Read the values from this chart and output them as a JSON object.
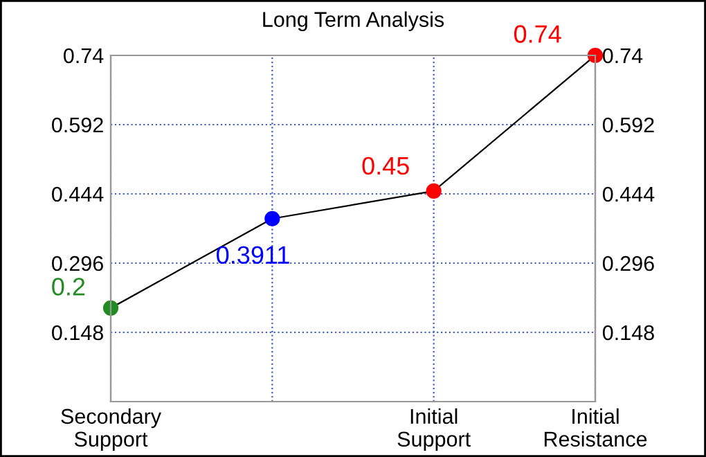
{
  "chart_data": {
    "type": "line",
    "title": "Long Term Analysis",
    "categories": [
      "Secondary\nSupport",
      null,
      "Initial\nSupport",
      "Initial\nResistance"
    ],
    "series": [
      {
        "color": "#000000",
        "colors": [
          "#228b22",
          "#0000ff",
          "#ff0000",
          "#ff0000"
        ],
        "values": [
          0.2,
          0.3911,
          0.45,
          0.74
        ],
        "value_labels": [
          "0.2",
          "0.3911",
          "0.45",
          "0.74"
        ]
      }
    ],
    "ylim": [
      0,
      0.74
    ],
    "yticks": [
      0.148,
      0.296,
      0.444,
      0.592,
      0.74
    ],
    "y2lim": [
      0,
      0.74
    ],
    "y2ticks": [
      0.148,
      0.296,
      0.444,
      0.592,
      0.74
    ],
    "grid": true,
    "marker": "circle",
    "line_style": "solid"
  }
}
